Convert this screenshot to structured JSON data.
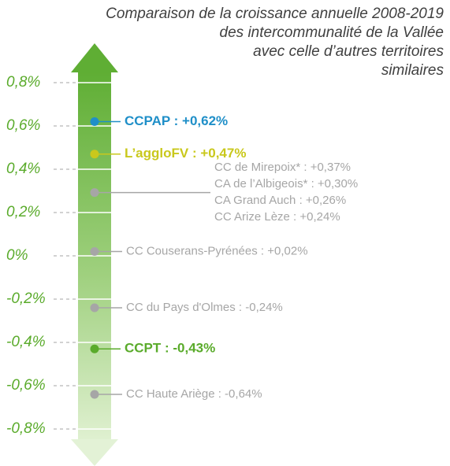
{
  "chart_data": {
    "type": "scale",
    "title": [
      "Comparaison de la croissance annuelle 2008-2019",
      "des intercommunalité de la Vallée",
      "avec celle d’autres territoires",
      "similaires"
    ],
    "ylim": [
      -0.8,
      0.8
    ],
    "yticks": [
      {
        "value": 0.8,
        "label": "0,8%"
      },
      {
        "value": 0.6,
        "label": "0,6%"
      },
      {
        "value": 0.4,
        "label": "0,4%"
      },
      {
        "value": 0.2,
        "label": "0,2%"
      },
      {
        "value": 0,
        "label": "0%"
      },
      {
        "value": -0.2,
        "label": "-0,2%"
      },
      {
        "value": -0.4,
        "label": "-0,4%"
      },
      {
        "value": -0.6,
        "label": "-0,6%"
      },
      {
        "value": -0.8,
        "label": "-0,8%"
      }
    ],
    "series": [
      {
        "color": "#1f8fc8",
        "bold": true,
        "values": [
          0.62
        ],
        "value_labels": [
          "CCPAP : +0,62%"
        ]
      },
      {
        "color": "#c9c81c",
        "bold": true,
        "values": [
          0.47
        ],
        "value_labels": [
          "L’aggloFV : +0,47%"
        ]
      },
      {
        "color": "#a6a6a6",
        "bold": false,
        "values": [
          0.37,
          0.3,
          0.26,
          0.24
        ],
        "value_labels": [
          "CC de Mirepoix* : +0,37%",
          "CA de l’Albigeois* : +0,30%",
          "CA Grand Auch : +0,26%",
          "CC Arize Lèze : +0,24%"
        ]
      },
      {
        "color": "#a6a6a6",
        "bold": false,
        "values": [
          0.02
        ],
        "value_labels": [
          "CC Couserans-Pyrénées : +0,02%"
        ]
      },
      {
        "color": "#a6a6a6",
        "bold": false,
        "values": [
          -0.24
        ],
        "value_labels": [
          "CC du Pays d'Olmes : -0,24%"
        ]
      },
      {
        "color": "#5aab2b",
        "bold": true,
        "values": [
          -0.43
        ],
        "value_labels": [
          "CCPT : -0,43%"
        ]
      },
      {
        "color": "#a6a6a6",
        "bold": false,
        "values": [
          -0.64
        ],
        "value_labels": [
          "CC Haute Ariège : -0,64%"
        ]
      }
    ]
  }
}
